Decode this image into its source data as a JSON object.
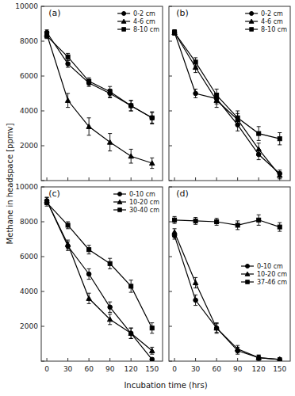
{
  "chart_data": [
    {
      "type": "line",
      "title": "(a)",
      "y_label": "Methane in headspace [ppmv]",
      "legend": "upper right",
      "tick_labels": "y",
      "x": [
        0,
        30,
        60,
        90,
        120,
        150
      ],
      "xlim": [
        -8,
        165
      ],
      "xticks": [
        0,
        30,
        60,
        90,
        120,
        150
      ],
      "ylim": [
        0,
        10000
      ],
      "yticks": [
        {
          "value": 0,
          "label": null
        },
        2000,
        4000,
        6000,
        8000,
        10000
      ],
      "series": [
        {
          "name": "0-2 cm",
          "marker": "circle",
          "color": "black",
          "values": [
            8500,
            6700,
            5600,
            5000,
            4300,
            3600
          ],
          "yerr": [
            150,
            200,
            200,
            250,
            300,
            350
          ]
        },
        {
          "name": "4-6 cm",
          "marker": "triangle",
          "color": "black",
          "values": [
            8400,
            4600,
            3100,
            2200,
            1400,
            1000
          ],
          "yerr": [
            150,
            400,
            500,
            500,
            400,
            300
          ]
        },
        {
          "name": "8-10 cm",
          "marker": "square",
          "color": "black",
          "values": [
            8300,
            7100,
            5700,
            5100,
            4300,
            3600
          ],
          "yerr": [
            150,
            200,
            200,
            300,
            300,
            300
          ]
        }
      ]
    },
    {
      "type": "line",
      "title": "(b)",
      "legend": "upper right",
      "tick_labels": false,
      "x": [
        0,
        30,
        60,
        90,
        120,
        150
      ],
      "xlim": [
        -8,
        165
      ],
      "xticks": [
        0,
        30,
        60,
        90,
        120,
        150
      ],
      "ylim": [
        0,
        10000
      ],
      "yticks": [
        0,
        2000,
        4000,
        6000,
        8000,
        10000
      ],
      "series": [
        {
          "name": "0-2 cm",
          "marker": "circle",
          "color": "black",
          "values": [
            8500,
            5000,
            4700,
            3200,
            1500,
            400
          ],
          "yerr": [
            150,
            250,
            300,
            350,
            300,
            200
          ]
        },
        {
          "name": "4-6 cm",
          "marker": "triangle",
          "color": "black",
          "values": [
            8500,
            6500,
            4600,
            3500,
            1800,
            300
          ],
          "yerr": [
            150,
            300,
            400,
            350,
            350,
            200
          ]
        },
        {
          "name": "8-10 cm",
          "marker": "square",
          "color": "black",
          "values": [
            8500,
            6800,
            4900,
            3600,
            2700,
            2400
          ],
          "yerr": [
            150,
            250,
            350,
            400,
            400,
            350
          ]
        }
      ]
    },
    {
      "type": "line",
      "title": "(c)",
      "x_label": "Incubation time (hrs)",
      "legend": "upper right",
      "x": [
        0,
        30,
        60,
        90,
        120,
        150
      ],
      "xlim": [
        -8,
        165
      ],
      "xticks": [
        0,
        30,
        60,
        90,
        120,
        150
      ],
      "ylim": [
        0,
        10000
      ],
      "yticks": [
        {
          "value": 0,
          "label": null
        },
        2000,
        4000,
        6000,
        8000,
        10000
      ],
      "series": [
        {
          "name": "0-10 cm",
          "marker": "circle",
          "color": "black",
          "values": [
            9200,
            6600,
            5000,
            3100,
            1600,
            100
          ],
          "yerr": [
            200,
            250,
            300,
            300,
            300,
            100
          ]
        },
        {
          "name": "10-20 cm",
          "marker": "triangle",
          "color": "black",
          "values": [
            9200,
            6700,
            3600,
            2400,
            1600,
            600
          ],
          "yerr": [
            200,
            250,
            300,
            300,
            300,
            200
          ]
        },
        {
          "name": "30-40 cm",
          "marker": "square",
          "color": "black",
          "values": [
            9100,
            7800,
            6400,
            5600,
            4300,
            1900
          ],
          "yerr": [
            200,
            200,
            250,
            300,
            350,
            300
          ]
        }
      ]
    },
    {
      "type": "line",
      "title": "(d)",
      "legend": "center right",
      "tick_labels": "x",
      "x": [
        0,
        30,
        60,
        90,
        120,
        150
      ],
      "xlim": [
        -8,
        165
      ],
      "xticks": [
        0,
        30,
        60,
        90,
        120,
        150
      ],
      "ylim": [
        0,
        10000
      ],
      "yticks": [
        0,
        2000,
        4000,
        6000,
        8000,
        10000
      ],
      "series": [
        {
          "name": "0-10 cm",
          "marker": "circle",
          "color": "black",
          "values": [
            7200,
            3500,
            1900,
            600,
            200,
            100
          ],
          "yerr": [
            200,
            300,
            250,
            200,
            150,
            100
          ]
        },
        {
          "name": "10-20 cm",
          "marker": "triangle",
          "color": "black",
          "values": [
            7400,
            4500,
            1900,
            700,
            200,
            100
          ],
          "yerr": [
            200,
            300,
            300,
            200,
            150,
            100
          ]
        },
        {
          "name": "37-46 cm",
          "marker": "square",
          "color": "black",
          "values": [
            8100,
            8050,
            8000,
            7800,
            8100,
            7700
          ],
          "yerr": [
            200,
            200,
            200,
            250,
            300,
            250
          ]
        }
      ]
    }
  ]
}
